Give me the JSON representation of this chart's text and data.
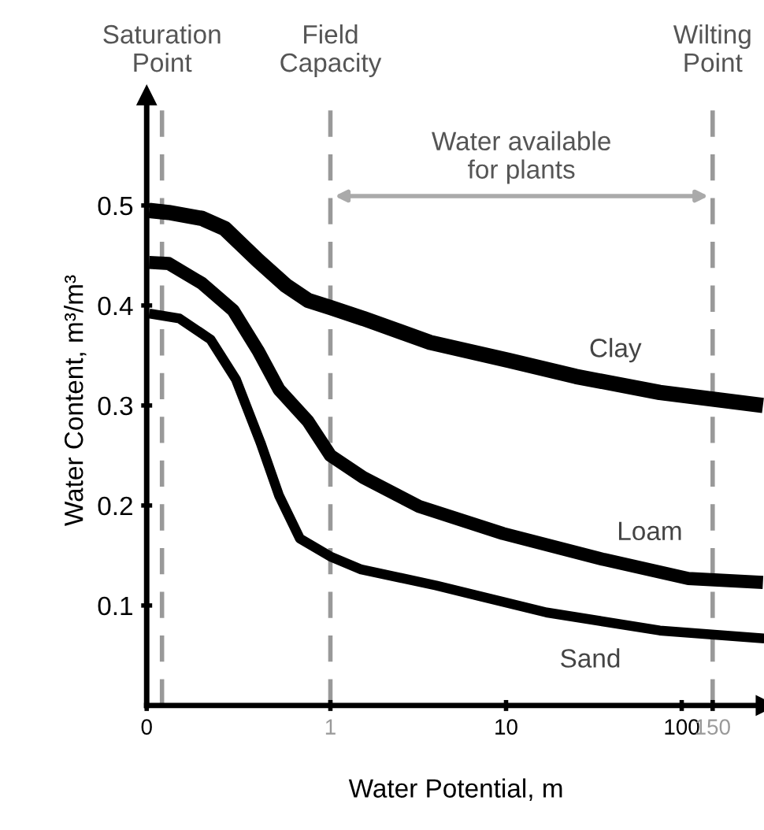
{
  "chart_data": {
    "type": "line",
    "xlabel": "Water Potential, m",
    "ylabel": "Water Content, m³/m³",
    "log": "x",
    "xlim": [
      0.09,
      300
    ],
    "ylim": [
      0,
      0.61
    ],
    "xticks": [
      {
        "value": 0.09,
        "label": "0"
      },
      1,
      10,
      100,
      {
        "value": 150,
        "label": "150"
      }
    ],
    "yticks": [
      0.1,
      0.2,
      0.3,
      0.4,
      0.5
    ],
    "grid": false,
    "marker": "none",
    "line_style": "solid",
    "series": [
      {
        "name": "Clay",
        "color": "#000000",
        "x": [
          0.093,
          0.12,
          0.186,
          0.25,
          0.387,
          0.558,
          0.747,
          1,
          1.54,
          3.7,
          10.4,
          25,
          75,
          290
        ],
        "values": [
          0.495,
          0.493,
          0.487,
          0.477,
          0.445,
          0.42,
          0.405,
          0.398,
          0.387,
          0.363,
          0.345,
          0.329,
          0.313,
          0.3
        ]
      },
      {
        "name": "Loam",
        "color": "#000000",
        "x": [
          0.093,
          0.12,
          0.186,
          0.28,
          0.387,
          0.51,
          0.747,
          1,
          1.54,
          3.2,
          9.6,
          36,
          109,
          290
        ],
        "values": [
          0.443,
          0.442,
          0.422,
          0.395,
          0.355,
          0.316,
          0.284,
          0.25,
          0.228,
          0.199,
          0.172,
          0.146,
          0.127,
          0.123
        ]
      },
      {
        "name": "Sand",
        "color": "#000000",
        "x": [
          0.093,
          0.138,
          0.208,
          0.29,
          0.4,
          0.51,
          0.67,
          1,
          1.5,
          4,
          17,
          75,
          295
        ],
        "values": [
          0.392,
          0.387,
          0.366,
          0.326,
          0.263,
          0.21,
          0.167,
          0.149,
          0.136,
          0.12,
          0.093,
          0.075,
          0.067
        ]
      }
    ],
    "ref_lines": [
      {
        "axis": "x",
        "value": 0.11,
        "label": "Saturation\nPoint",
        "color": "#999999",
        "line_style": "dashed"
      },
      {
        "axis": "x",
        "value": 1,
        "label": "Field\nCapacity",
        "color": "#999999",
        "line_style": "dashed"
      },
      {
        "axis": "x",
        "value": 150,
        "label": "Wilting\nPoint",
        "color": "#999999",
        "line_style": "dashed"
      }
    ],
    "annotations": [
      "Water available\nfor plants"
    ]
  }
}
